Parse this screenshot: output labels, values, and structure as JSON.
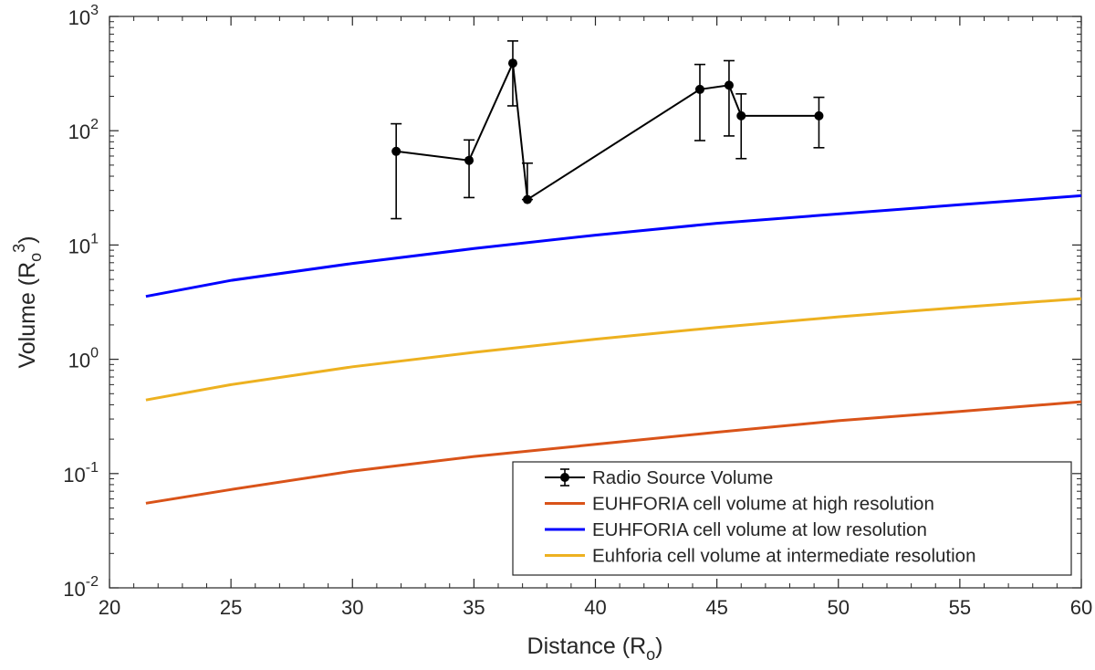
{
  "chart_data": {
    "type": "line",
    "yscale": "log",
    "xlabel": "Distance (R",
    "xlabel_sub": "o",
    "xlabel_close": ")",
    "ylabel": "Volume (R",
    "ylabel_sub": "o",
    "ylabel_sup": "3",
    "ylabel_close": ")",
    "xlim": [
      20,
      60
    ],
    "ylim_exponents": [
      -2,
      3
    ],
    "x_ticks": [
      20,
      25,
      30,
      35,
      40,
      45,
      50,
      55,
      60
    ],
    "x_tick_labels": [
      "20",
      "25",
      "30",
      "35",
      "40",
      "45",
      "50",
      "55",
      "60"
    ],
    "y_ticks_exponents": [
      -2,
      -1,
      0,
      1,
      2,
      3
    ],
    "y_tick_base": "10",
    "y_tick_exps": [
      "-2",
      "-1",
      "0",
      "1",
      "2",
      "3"
    ],
    "legend_position": "bottom-right",
    "series": [
      {
        "name": "Radio Source Volume",
        "kind": "errorbar",
        "color": "#000000",
        "x": [
          31.8,
          34.8,
          36.6,
          37.2,
          44.3,
          45.5,
          46.0,
          49.2
        ],
        "y": [
          66,
          55,
          390,
          25,
          230,
          250,
          135,
          135
        ],
        "y_low": [
          17,
          26,
          165,
          25,
          82,
          90,
          57,
          71
        ],
        "y_high": [
          115,
          83,
          610,
          52,
          380,
          410,
          210,
          196
        ]
      },
      {
        "name": "EUHFORIA cell volume at high resolution",
        "kind": "line",
        "color": "#D95319",
        "x": [
          21.5,
          25,
          30,
          35,
          40,
          45,
          50,
          55,
          60
        ],
        "y": [
          0.055,
          0.0725,
          0.105,
          0.141,
          0.18,
          0.23,
          0.29,
          0.35,
          0.425
        ]
      },
      {
        "name": "EUHFORIA cell volume at low resolution",
        "kind": "line",
        "color": "#0000FF",
        "x": [
          21.5,
          25,
          30,
          35,
          40,
          45,
          50,
          55,
          60
        ],
        "y": [
          3.55,
          4.9,
          6.9,
          9.3,
          12.2,
          15.5,
          18.7,
          22.5,
          27.0
        ]
      },
      {
        "name": "Euhforia cell volume at intermediate resolution",
        "kind": "line",
        "color": "#EDB120",
        "x": [
          21.5,
          25,
          30,
          35,
          40,
          45,
          50,
          55,
          60
        ],
        "y": [
          0.44,
          0.6,
          0.86,
          1.15,
          1.5,
          1.9,
          2.35,
          2.85,
          3.4
        ]
      }
    ]
  }
}
